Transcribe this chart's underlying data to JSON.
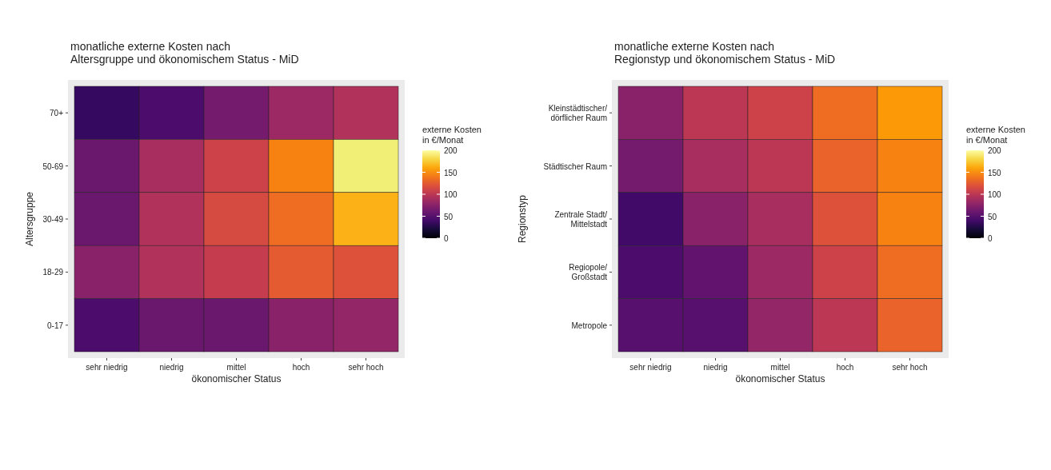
{
  "chart_data": [
    {
      "type": "heatmap",
      "title": "monatliche externe Kosten nach\nAltersgruppe und ökonomischem Status - MiD",
      "xlabel": "ökonomischer Status",
      "ylabel": "Altersgruppe",
      "clabel": "externe Kosten\nin €/Monat",
      "categories": [
        "sehr niedrig",
        "niedrig",
        "mittel",
        "hoch",
        "sehr hoch"
      ],
      "y_categories": [
        "70+",
        "50-69",
        "30-49",
        "18-29",
        "0-17"
      ],
      "cells": [
        [
          35,
          45,
          65,
          85,
          95
        ],
        [
          60,
          90,
          110,
          145,
          190
        ],
        [
          60,
          95,
          115,
          135,
          165
        ],
        [
          75,
          95,
          105,
          125,
          120
        ],
        [
          45,
          60,
          60,
          75,
          80
        ]
      ],
      "clim": [
        0,
        200
      ],
      "cticks": [
        0,
        50,
        100,
        150,
        200
      ]
    },
    {
      "type": "heatmap",
      "title": "monatliche externe Kosten nach\nRegionstyp und ökonomischem Status - MiD",
      "xlabel": "ökonomischer Status",
      "ylabel": "Regionstyp",
      "clabel": "externe Kosten\nin €/Monat",
      "categories": [
        "sehr niedrig",
        "niedrig",
        "mittel",
        "hoch",
        "sehr hoch"
      ],
      "y_categories": [
        "Kleinstädtischer/\ndörflicher Raum",
        "Städtischer Raum",
        "Zentrale Stadt/\nMittelstadt",
        "Regiopole/\nGroßstadt",
        "Metropole"
      ],
      "cells": [
        [
          75,
          100,
          110,
          135,
          155
        ],
        [
          65,
          90,
          100,
          130,
          145
        ],
        [
          40,
          75,
          90,
          120,
          145
        ],
        [
          45,
          55,
          85,
          110,
          135
        ],
        [
          50,
          50,
          80,
          100,
          130
        ]
      ],
      "clim": [
        0,
        200
      ],
      "cticks": [
        0,
        50,
        100,
        150,
        200
      ]
    }
  ]
}
